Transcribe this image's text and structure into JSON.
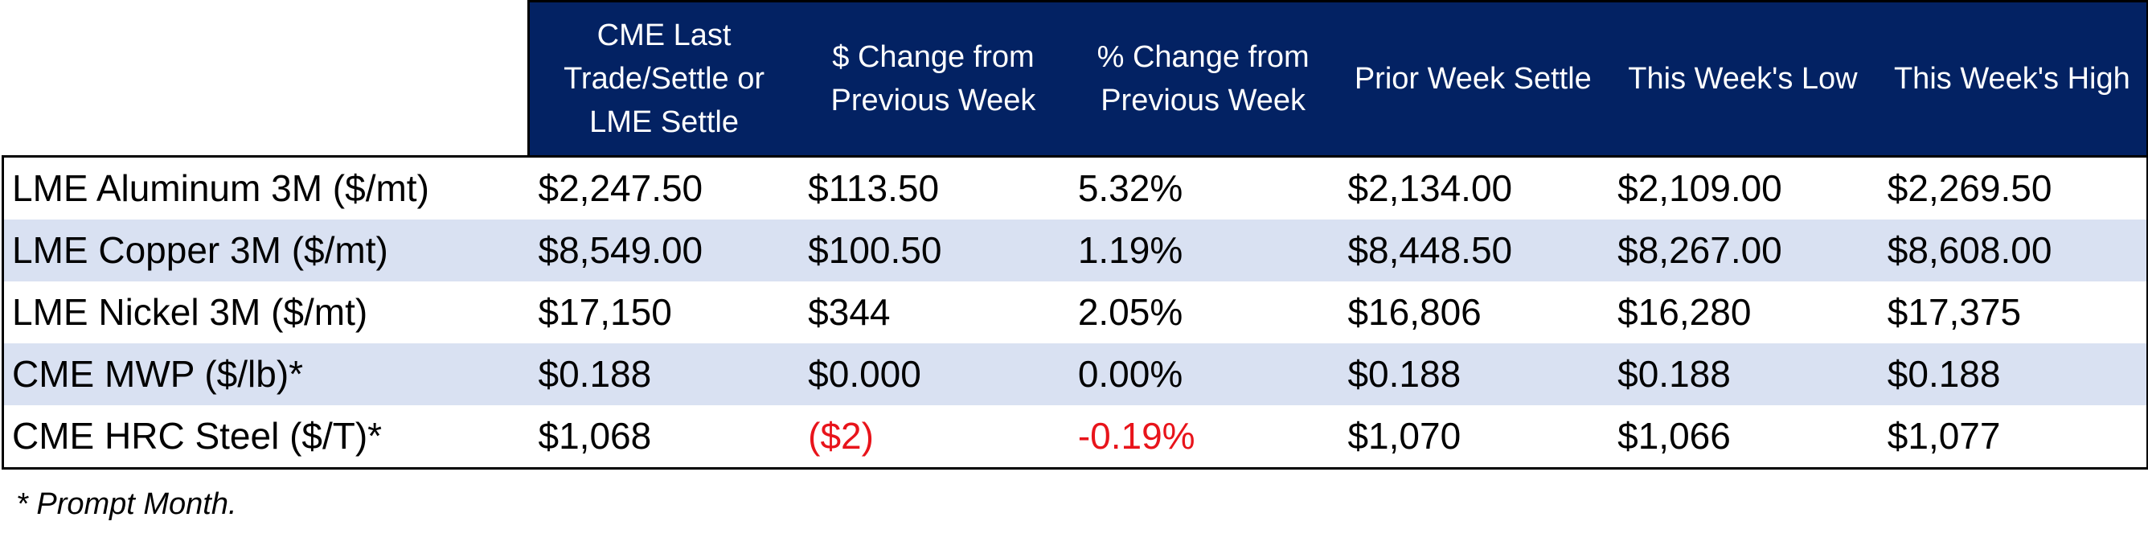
{
  "colors": {
    "header_bg": "#032263",
    "header_text": "#ffffff",
    "alt_row_bg": "#d9e1f2",
    "negative_text": "#e8141b",
    "border": "#000000"
  },
  "chart_data": {
    "type": "table",
    "columns": [
      "",
      "CME Last Trade/Settle or LME Settle",
      "$ Change from Previous Week",
      "% Change from Previous Week",
      "Prior Week Settle",
      "This Week's Low",
      "This Week's High"
    ],
    "header_lines": [
      [],
      [
        "CME Last",
        "Trade/Settle or",
        "LME Settle"
      ],
      [
        "$ Change from",
        "Previous Week"
      ],
      [
        "% Change from",
        "Previous Week"
      ],
      [
        "Prior Week Settle"
      ],
      [
        "This Week's Low"
      ],
      [
        "This Week's High"
      ]
    ],
    "rows": [
      {
        "label": "LME Aluminum 3M ($/mt)",
        "cells": [
          "$2,247.50",
          "$113.50",
          "5.32%",
          "$2,134.00",
          "$2,109.00",
          "$2,269.50"
        ],
        "negative": [
          false,
          false,
          false,
          false,
          false,
          false
        ]
      },
      {
        "label": "LME Copper 3M ($/mt)",
        "cells": [
          "$8,549.00",
          "$100.50",
          "1.19%",
          "$8,448.50",
          "$8,267.00",
          "$8,608.00"
        ],
        "negative": [
          false,
          false,
          false,
          false,
          false,
          false
        ]
      },
      {
        "label": "LME Nickel 3M ($/mt)",
        "cells": [
          "$17,150",
          "$344",
          "2.05%",
          "$16,806",
          "$16,280",
          "$17,375"
        ],
        "negative": [
          false,
          false,
          false,
          false,
          false,
          false
        ]
      },
      {
        "label": "CME MWP ($/lb)*",
        "cells": [
          "$0.188",
          "$0.000",
          "0.00%",
          "$0.188",
          "$0.188",
          "$0.188"
        ],
        "negative": [
          false,
          false,
          false,
          false,
          false,
          false
        ]
      },
      {
        "label": "CME HRC Steel ($/T)*",
        "cells": [
          "$1,068",
          "($2)",
          "-0.19%",
          "$1,070",
          "$1,066",
          "$1,077"
        ],
        "negative": [
          false,
          true,
          true,
          false,
          false,
          false
        ]
      }
    ],
    "footnote": "* Prompt Month."
  }
}
